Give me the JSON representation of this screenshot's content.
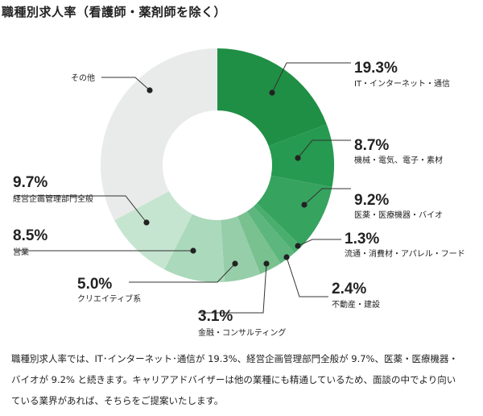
{
  "title": "職種別求人率（看護師・薬剤師を除く）",
  "description": "職種別求人率では、IT･インターネット･通信が 19.3%、経営企画管理部門全般が 9.7%、医薬・医療機器・バイオが 9.2% と続きます。キャリアアドバイザーは他の業種にも精通しているため、面談の中でより向いている業界があれば、そちらをご提案いたします。",
  "chart_data": {
    "type": "pie",
    "donut": true,
    "slices": [
      {
        "name": "IT・インターネット・通信",
        "value": 19.3,
        "value_label": "19.3%",
        "color": "#1f8f45"
      },
      {
        "name": "機械・電気、電子・素材",
        "value": 8.7,
        "value_label": "8.7%",
        "color": "#269a50"
      },
      {
        "name": "医薬・医療機器・バイオ",
        "value": 9.2,
        "value_label": "9.2%",
        "color": "#36a35f"
      },
      {
        "name": "流通・消費材・アパレル・フード",
        "value": 1.3,
        "value_label": "1.3%",
        "color": "#4aae6f"
      },
      {
        "name": "不動産・建設",
        "value": 2.4,
        "value_label": "2.4%",
        "color": "#5db67e"
      },
      {
        "name": "金融・コンサルティング",
        "value": 3.1,
        "value_label": "3.1%",
        "color": "#79c18f"
      },
      {
        "name": "クリエイティブ系",
        "value": 5.0,
        "value_label": "5.0%",
        "color": "#97ceaa"
      },
      {
        "name": "営業",
        "value": 8.5,
        "value_label": "8.5%",
        "color": "#abd9bb"
      },
      {
        "name": "経営企画管理部門全般",
        "value": 9.7,
        "value_label": "9.7%",
        "color": "#c6e5d0"
      },
      {
        "name": "その他",
        "value": 32.8,
        "value_label": "",
        "color": "#e9ebea"
      }
    ]
  }
}
